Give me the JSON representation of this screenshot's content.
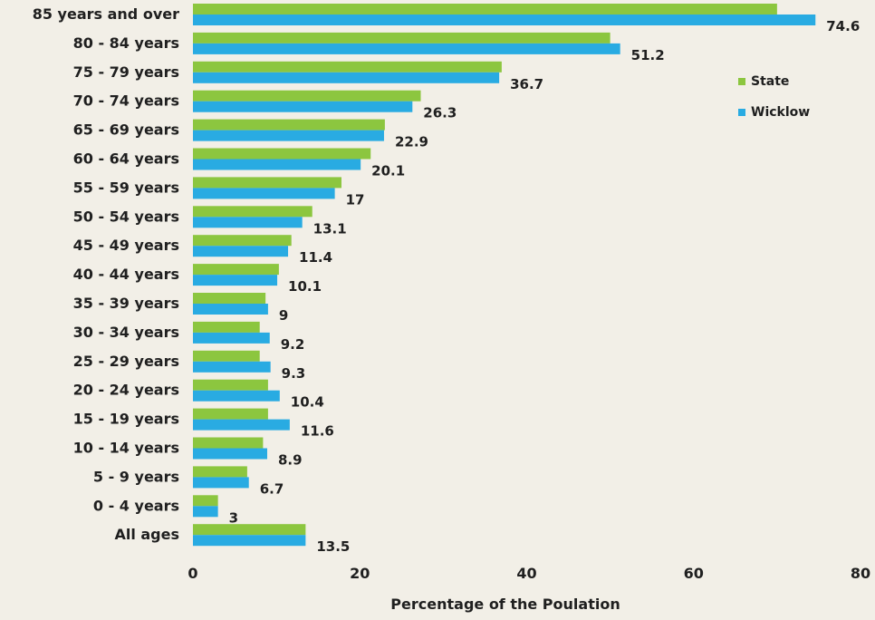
{
  "chart_data": {
    "type": "bar",
    "orientation": "horizontal",
    "title": "",
    "xlabel": "Percentage  of  the Poulation",
    "ylabel": "",
    "xlim": [
      0,
      80
    ],
    "xticks": [
      0,
      20,
      40,
      60,
      80
    ],
    "grid": false,
    "legend_position": "top-right",
    "categories": [
      "85 years and over",
      "80 - 84 years",
      "75 - 79 years",
      "70 - 74 years",
      "65 - 69 years",
      "60 - 64 years",
      "55 - 59 years",
      "50 - 54 years",
      "45 - 49 years",
      "40 - 44 years",
      "35 - 39 years",
      "30 - 34 years",
      "25 - 29 years",
      "20 - 24 years",
      "15 - 19 years",
      "10 - 14 years",
      "5 - 9 years",
      "0 - 4 years",
      "All ages"
    ],
    "series": [
      {
        "name": "State",
        "color": "#8cc63f",
        "values": [
          70,
          50,
          37,
          27.3,
          23,
          21.3,
          17.8,
          14.3,
          11.8,
          10.3,
          8.7,
          8,
          8,
          9,
          9,
          8.4,
          6.5,
          3,
          13.5
        ]
      },
      {
        "name": "Wicklow",
        "color": "#29abe2",
        "values": [
          74.6,
          51.2,
          36.7,
          26.3,
          22.9,
          20.1,
          17,
          13.1,
          11.4,
          10.1,
          9,
          9.2,
          9.3,
          10.4,
          11.6,
          8.9,
          6.7,
          3,
          13.5
        ]
      }
    ],
    "data_labels": [
      "74.6",
      "51.2",
      "36.7",
      "26.3",
      "22.9",
      "20.1",
      "17",
      "13.1",
      "11.4",
      "10.1",
      "9",
      "9.2",
      "9.3",
      "10.4",
      "11.6",
      "8.9",
      "6.7",
      "3",
      "13.5"
    ]
  }
}
